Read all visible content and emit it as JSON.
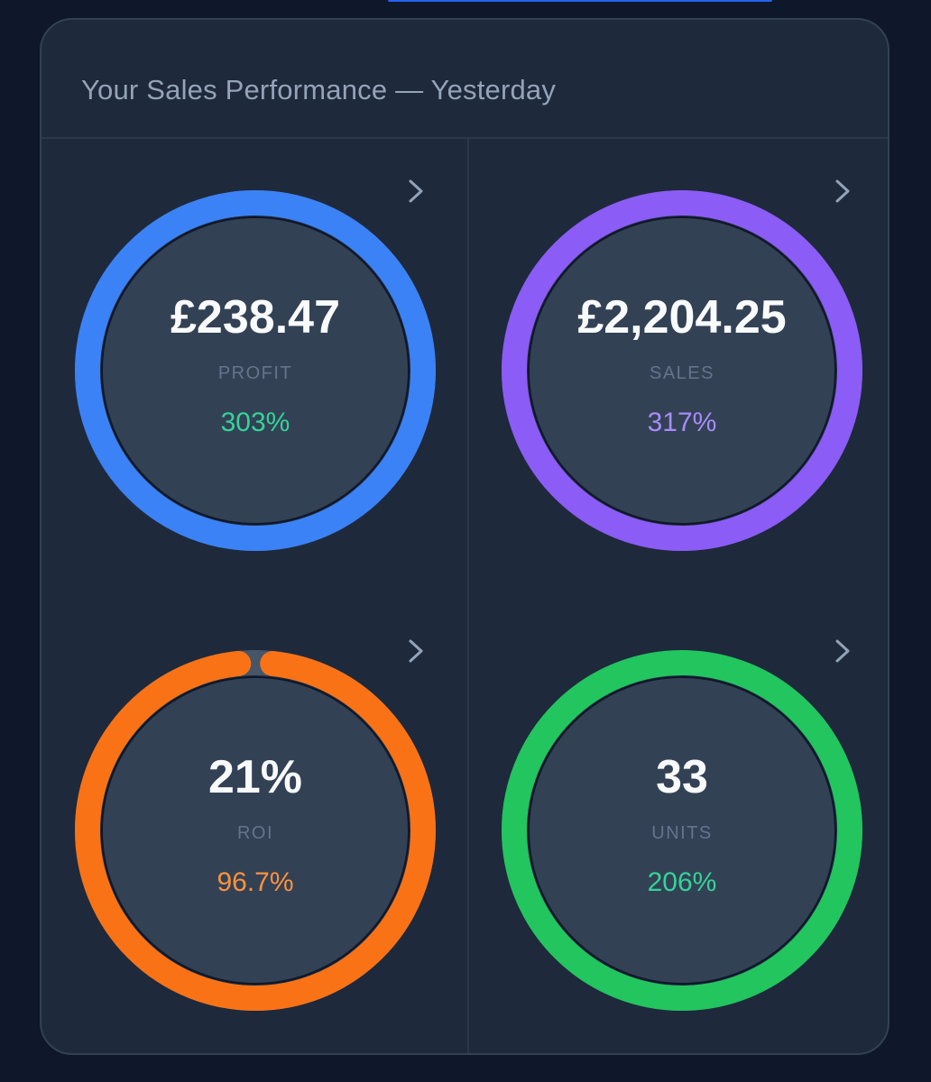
{
  "header": {
    "title": "Your Sales Performance — Yesterday"
  },
  "colors": {
    "profit": "#3b82f6",
    "sales": "#8b5cf6",
    "roi": "#f97316",
    "units": "#22c55e",
    "track": "#475569",
    "positive_change": "#4ade80",
    "sales_change": "#a78bfa",
    "roi_change": "#fb923c"
  },
  "metrics": [
    {
      "key": "profit",
      "value": "£238.47",
      "label": "PROFIT",
      "change": "303%",
      "ring_fraction": 1.0,
      "change_color": "#34d399",
      "ring_color": "#3b82f6",
      "icon": "chevron-right-icon"
    },
    {
      "key": "sales",
      "value": "£2,204.25",
      "label": "SALES",
      "change": "317%",
      "ring_fraction": 1.0,
      "change_color": "#a78bfa",
      "ring_color": "#8b5cf6",
      "icon": "chevron-right-icon"
    },
    {
      "key": "roi",
      "value": "21%",
      "label": "ROI",
      "change": "96.7%",
      "ring_fraction": 0.967,
      "change_color": "#fb923c",
      "ring_color": "#f97316",
      "icon": "chevron-right-icon"
    },
    {
      "key": "units",
      "value": "33",
      "label": "UNITS",
      "change": "206%",
      "ring_fraction": 1.0,
      "change_color": "#34d399",
      "ring_color": "#22c55e",
      "icon": "chevron-right-icon"
    }
  ]
}
